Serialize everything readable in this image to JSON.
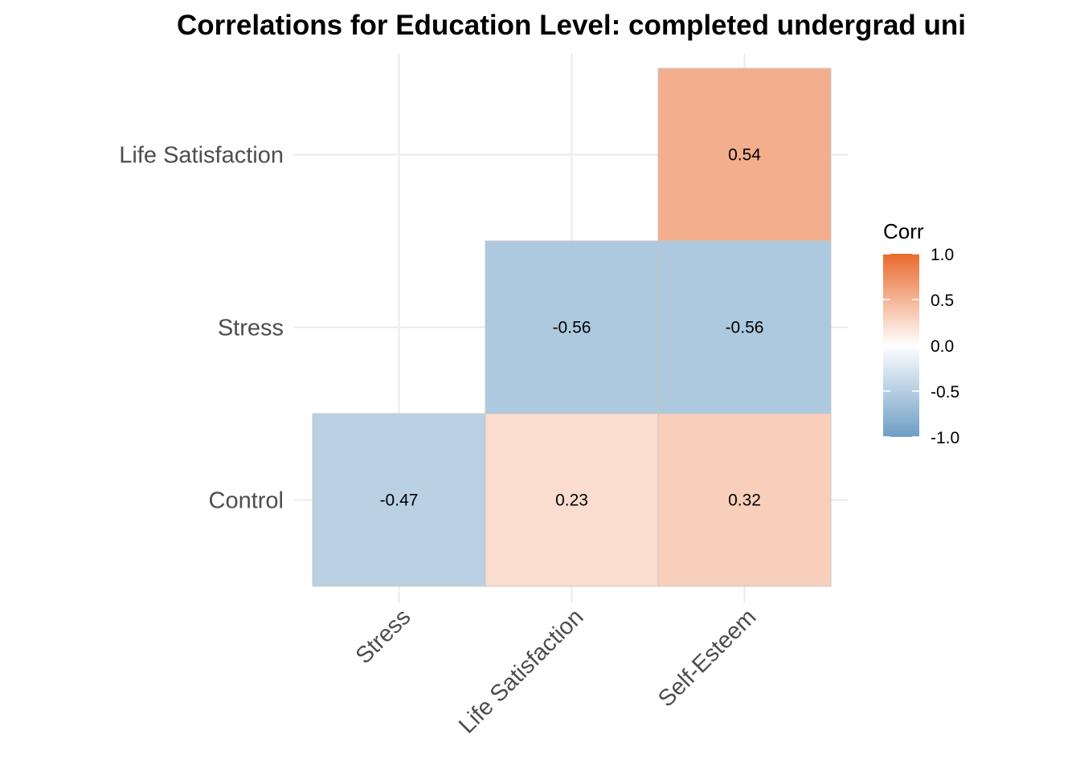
{
  "chart_data": {
    "type": "heatmap",
    "title": "Correlations for Education Level: completed undergrad uni",
    "x_categories": [
      "Stress",
      "Life Satisfaction",
      "Self-Esteem"
    ],
    "y_categories": [
      "Control",
      "Stress",
      "Life Satisfaction"
    ],
    "cells": [
      {
        "x": "Stress",
        "y": "Control",
        "value": -0.47,
        "label": "-0.47"
      },
      {
        "x": "Life Satisfaction",
        "y": "Control",
        "value": 0.23,
        "label": "0.23"
      },
      {
        "x": "Self-Esteem",
        "y": "Control",
        "value": 0.32,
        "label": "0.32"
      },
      {
        "x": "Life Satisfaction",
        "y": "Stress",
        "value": -0.56,
        "label": "-0.56"
      },
      {
        "x": "Self-Esteem",
        "y": "Stress",
        "value": -0.56,
        "label": "-0.56"
      },
      {
        "x": "Self-Esteem",
        "y": "Life Satisfaction",
        "value": 0.54,
        "label": "0.54"
      }
    ],
    "legend": {
      "title": "Corr",
      "ticks": [
        "1.0",
        "0.5",
        "0.0",
        "-0.5",
        "-1.0"
      ],
      "range": [
        -1,
        1
      ],
      "colors": {
        "low": "#6d9ec5",
        "mid": "#ffffff",
        "high": "#e9692c"
      }
    },
    "grid": true,
    "legend_position": "right"
  }
}
